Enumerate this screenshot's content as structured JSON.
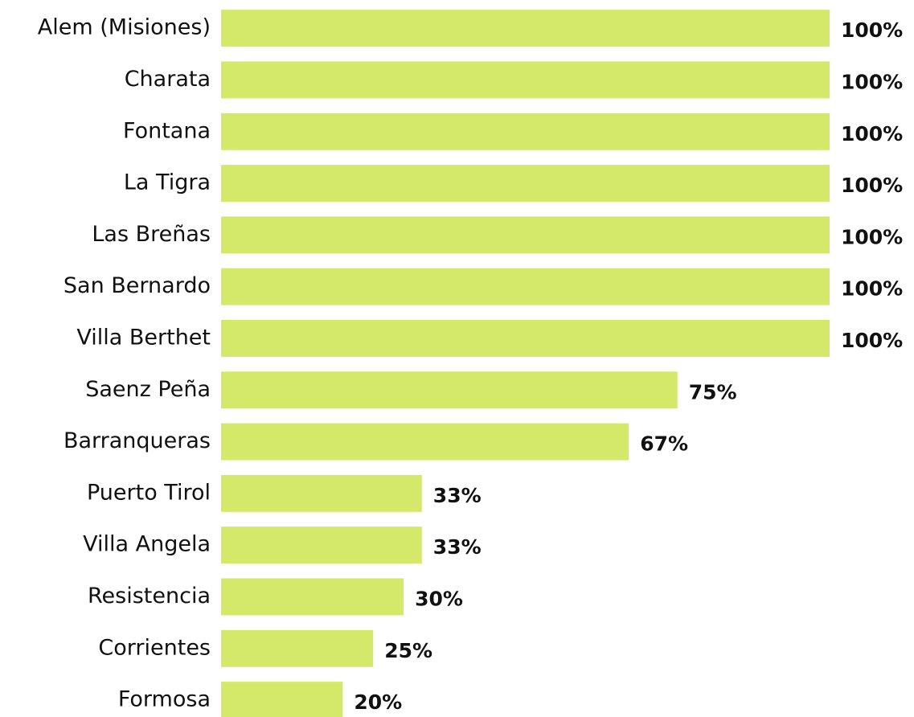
{
  "chart_data": {
    "type": "bar",
    "orientation": "horizontal",
    "categories": [
      "Alem (Misiones)",
      "Charata",
      "Fontana",
      "La Tigra",
      "Las Breñas",
      "San Bernardo",
      "Villa Berthet",
      "Saenz Peña",
      "Barranqueras",
      "Puerto Tirol",
      "Villa Angela",
      "Resistencia",
      "Corrientes",
      "Formosa"
    ],
    "values": [
      100,
      100,
      100,
      100,
      100,
      100,
      100,
      75,
      67,
      33,
      33,
      30,
      25,
      20
    ],
    "value_labels": [
      "100%",
      "100%",
      "100%",
      "100%",
      "100%",
      "100%",
      "100%",
      "75%",
      "67%",
      "33%",
      "33%",
      "30%",
      "25%",
      "20%"
    ],
    "color": "#d4e96a",
    "xlim": [
      0,
      100
    ]
  }
}
